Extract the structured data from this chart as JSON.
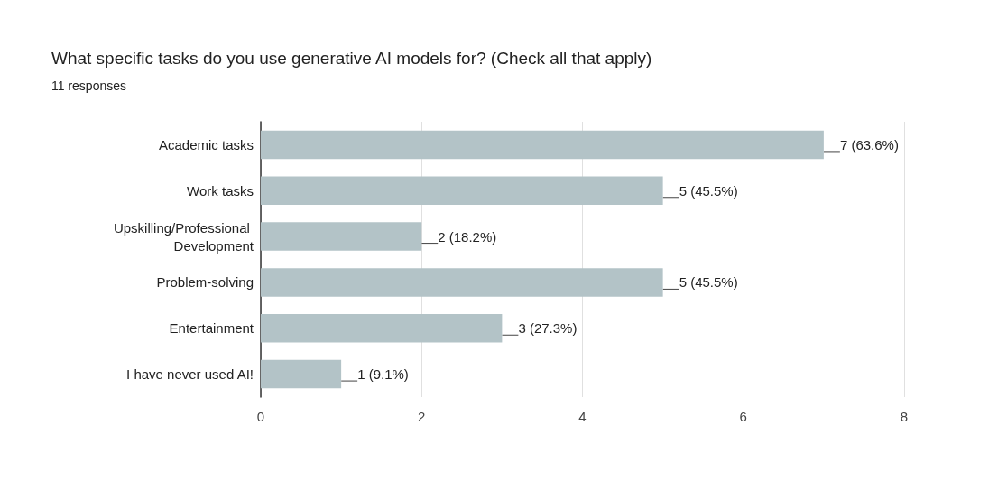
{
  "chart_data": {
    "type": "bar",
    "orientation": "horizontal",
    "title": "What specific tasks do you use generative AI models for? (Check all that apply)",
    "subtitle": "11 responses",
    "categories": [
      "Academic tasks",
      "Work tasks",
      "Upskilling/Professional Development",
      "Problem-solving",
      "Entertainment",
      "I have never used AI!"
    ],
    "values": [
      7,
      5,
      2,
      5,
      3,
      1
    ],
    "value_labels": [
      "7 (63.6%)",
      "5 (45.5%)",
      "2 (18.2%)",
      "5 (45.5%)",
      "3 (27.3%)",
      "1 (9.1%)"
    ],
    "color": "#b3c3c7",
    "xlim": [
      0,
      8
    ],
    "xticks": [
      0,
      2,
      4,
      6,
      8
    ],
    "grid": "x"
  }
}
